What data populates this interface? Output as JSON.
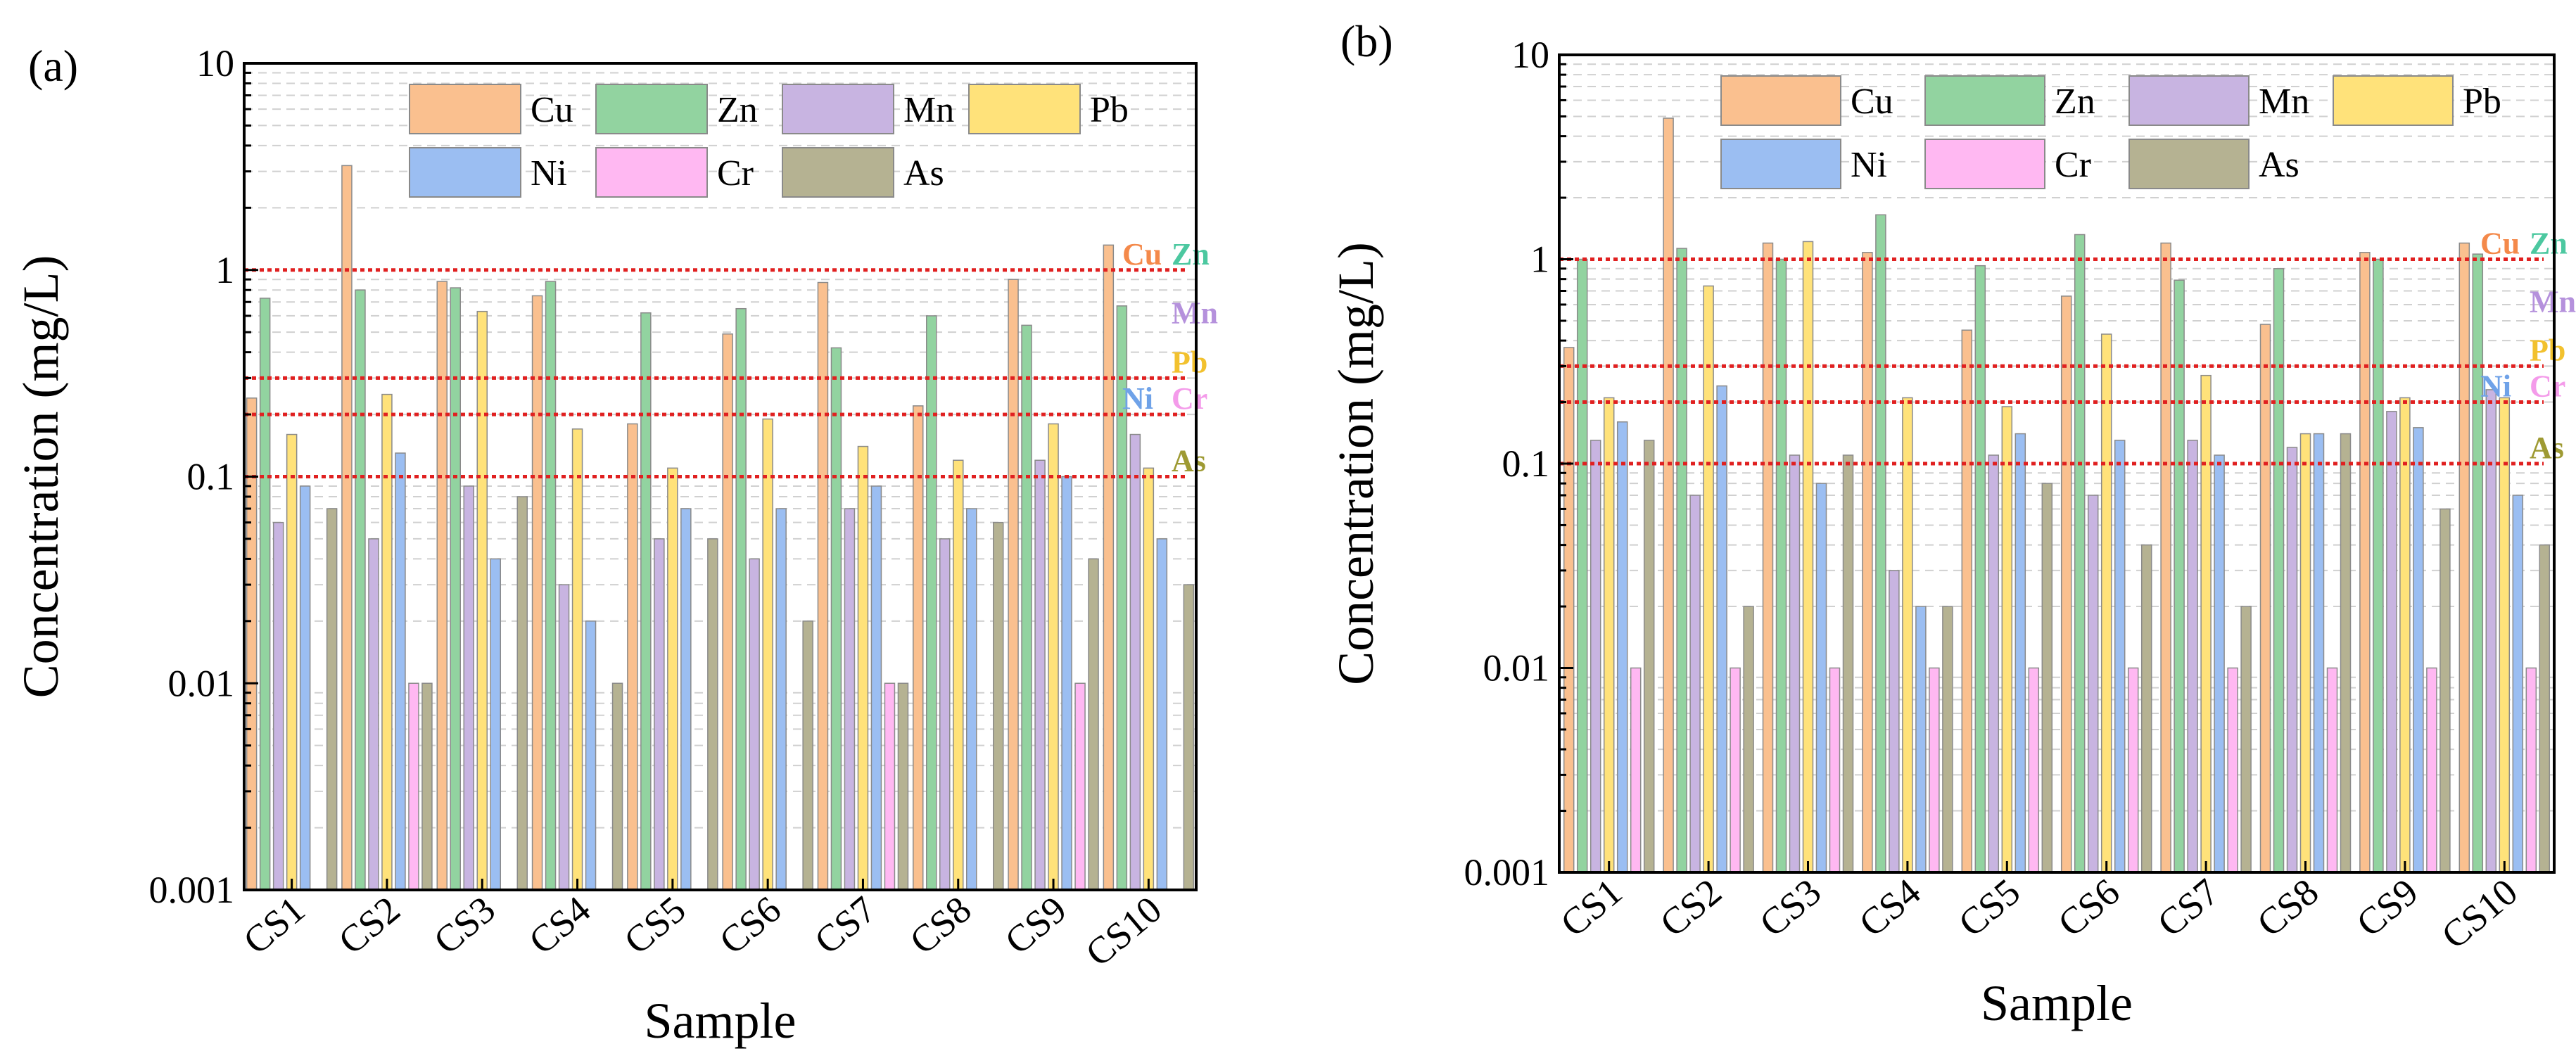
{
  "chart_data": [
    {
      "type": "bar",
      "panel_label": "(a)",
      "xlabel": "Sample",
      "ylabel": "Concentration (mg/L)",
      "yscale": "log",
      "ylim": [
        0.001,
        10
      ],
      "yticks": [
        {
          "value": 0.001,
          "label": "0.001"
        },
        {
          "value": 0.01,
          "label": "0.01"
        },
        {
          "value": 0.1,
          "label": "0.1"
        },
        {
          "value": 1,
          "label": "1"
        },
        {
          "value": 10,
          "label": "10"
        }
      ],
      "categories": [
        "CS1",
        "CS2",
        "CS3",
        "CS4",
        "CS5",
        "CS6",
        "CS7",
        "CS8",
        "CS9",
        "CS10"
      ],
      "series": [
        {
          "name": "Cu",
          "color": "#FAC08F",
          "values": [
            0.24,
            3.2,
            0.88,
            0.75,
            0.18,
            0.49,
            0.87,
            0.22,
            0.9,
            1.32
          ]
        },
        {
          "name": "Zn",
          "color": "#92D3A0",
          "values": [
            0.73,
            0.8,
            0.82,
            0.88,
            0.62,
            0.65,
            0.42,
            0.6,
            0.54,
            0.67
          ]
        },
        {
          "name": "Mn",
          "color": "#C8B4E1",
          "values": [
            0.06,
            0.05,
            0.09,
            0.03,
            0.05,
            0.04,
            0.07,
            0.05,
            0.12,
            0.16
          ]
        },
        {
          "name": "Pb",
          "color": "#FFE27A",
          "values": [
            0.16,
            0.25,
            0.63,
            0.17,
            0.11,
            0.19,
            0.14,
            0.12,
            0.18,
            0.11
          ]
        },
        {
          "name": "Ni",
          "color": "#9BBEF2",
          "values": [
            0.09,
            0.13,
            0.04,
            0.02,
            0.07,
            0.07,
            0.09,
            0.07,
            0.1,
            0.05
          ]
        },
        {
          "name": "Cr",
          "color": "#FFB8F2",
          "values": [
            null,
            0.01,
            null,
            null,
            null,
            null,
            0.01,
            null,
            0.01,
            null
          ]
        },
        {
          "name": "As",
          "color": "#B5B292",
          "values": [
            0.07,
            0.01,
            0.08,
            0.01,
            0.05,
            0.02,
            0.01,
            0.06,
            0.04,
            0.03
          ]
        }
      ],
      "reference_lines": [
        {
          "value": 1,
          "labels": [
            {
              "text": "Cu",
              "color": "#F4894A"
            },
            {
              "text": "Zn",
              "color": "#4CC8A0"
            }
          ]
        },
        {
          "value": 0.3,
          "labels": [
            {
              "text": "Pb",
              "color": "#F2C12E"
            }
          ]
        },
        {
          "value": 0.2,
          "labels": [
            {
              "text": "Ni",
              "color": "#6FA2E8"
            },
            {
              "text": "Cr",
              "color": "#F49BEA"
            }
          ]
        },
        {
          "value": 0.1,
          "labels": [
            {
              "text": "As",
              "color": "#9E9A33"
            }
          ]
        }
      ],
      "extra_labels": [
        {
          "text": "Mn",
          "color": "#B591DC",
          "near": 0.7
        }
      ]
    },
    {
      "type": "bar",
      "panel_label": "(b)",
      "xlabel": "Sample",
      "ylabel": "Concentration (mg/L)",
      "yscale": "log",
      "ylim": [
        0.001,
        10
      ],
      "yticks": [
        {
          "value": 0.001,
          "label": "0.001"
        },
        {
          "value": 0.01,
          "label": "0.01"
        },
        {
          "value": 0.1,
          "label": "0.1"
        },
        {
          "value": 1,
          "label": "1"
        },
        {
          "value": 10,
          "label": "10"
        }
      ],
      "categories": [
        "CS1",
        "CS2",
        "CS3",
        "CS4",
        "CS5",
        "CS6",
        "CS7",
        "CS8",
        "CS9",
        "CS10"
      ],
      "series": [
        {
          "name": "Cu",
          "color": "#FAC08F",
          "values": [
            0.37,
            4.9,
            1.2,
            1.08,
            0.45,
            0.66,
            1.2,
            0.48,
            1.08,
            1.2
          ]
        },
        {
          "name": "Zn",
          "color": "#92D3A0",
          "values": [
            1.0,
            1.13,
            1.0,
            1.65,
            0.93,
            1.32,
            0.79,
            0.9,
            1.0,
            1.06
          ]
        },
        {
          "name": "Mn",
          "color": "#C8B4E1",
          "values": [
            0.13,
            0.07,
            0.11,
            0.03,
            0.11,
            0.07,
            0.13,
            0.12,
            0.18,
            0.23
          ]
        },
        {
          "name": "Pb",
          "color": "#FFE27A",
          "values": [
            0.21,
            0.74,
            1.22,
            0.21,
            0.19,
            0.43,
            0.27,
            0.14,
            0.21,
            0.21
          ]
        },
        {
          "name": "Ni",
          "color": "#9BBEF2",
          "values": [
            0.16,
            0.24,
            0.08,
            0.02,
            0.14,
            0.13,
            0.11,
            0.14,
            0.15,
            0.07
          ]
        },
        {
          "name": "Cr",
          "color": "#FFB8F2",
          "values": [
            0.01,
            0.01,
            0.01,
            0.01,
            0.01,
            0.01,
            0.01,
            0.01,
            0.01,
            0.01
          ]
        },
        {
          "name": "As",
          "color": "#B5B292",
          "values": [
            0.13,
            0.02,
            0.11,
            0.02,
            0.08,
            0.04,
            0.02,
            0.14,
            0.06,
            0.04
          ]
        }
      ],
      "reference_lines": [
        {
          "value": 1,
          "labels": [
            {
              "text": "Cu",
              "color": "#F4894A"
            },
            {
              "text": "Zn",
              "color": "#4CC8A0"
            }
          ]
        },
        {
          "value": 0.3,
          "labels": [
            {
              "text": "Pb",
              "color": "#F2C12E"
            }
          ]
        },
        {
          "value": 0.2,
          "labels": [
            {
              "text": "Ni",
              "color": "#6FA2E8"
            },
            {
              "text": "Cr",
              "color": "#F49BEA"
            }
          ]
        },
        {
          "value": 0.1,
          "labels": [
            {
              "text": "As",
              "color": "#9E9A33"
            }
          ]
        }
      ],
      "extra_labels": [
        {
          "text": "Mn",
          "color": "#B591DC",
          "near": 0.7
        }
      ]
    }
  ]
}
